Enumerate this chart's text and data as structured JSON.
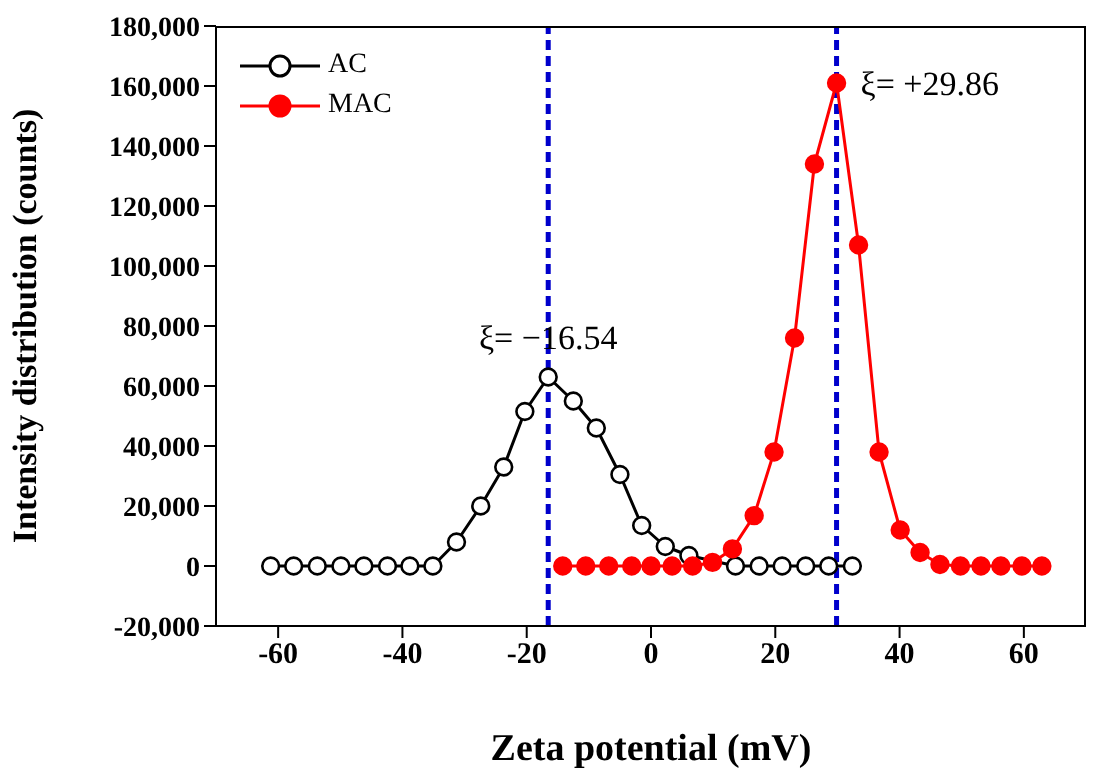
{
  "chart_data": {
    "type": "line",
    "xlabel": "Zeta potential (mV)",
    "ylabel": "Intensity distribution (counts)",
    "xlim": [
      -70,
      70
    ],
    "xticks": [
      -60,
      -40,
      -20,
      0,
      20,
      40,
      60
    ],
    "ylim": [
      -20000,
      180000
    ],
    "yticks": [
      {
        "value": -20000,
        "label": "-20,000"
      },
      0,
      {
        "value": 20000,
        "label": "20,000"
      },
      {
        "value": 40000,
        "label": "40,000"
      },
      {
        "value": 60000,
        "label": "60,000"
      },
      {
        "value": 80000,
        "label": "80,000"
      },
      {
        "value": 100000,
        "label": "100,000"
      },
      {
        "value": 120000,
        "label": "120,000"
      },
      {
        "value": 140000,
        "label": "140,000"
      },
      {
        "value": 160000,
        "label": "160,000"
      },
      {
        "value": 180000,
        "label": "180,000"
      }
    ],
    "legend": "top left",
    "marker": "circle",
    "line_style": "solid",
    "series": [
      {
        "name": "AC",
        "color": "#000000",
        "x": [
          -61.2,
          -57.5,
          -53.7,
          -49.9,
          -46.2,
          -42.4,
          -38.8,
          -35.1,
          -31.3,
          -27.4,
          -23.7,
          -20.3,
          -16.54,
          -12.5,
          -8.8,
          -5.0,
          -1.5,
          2.3,
          6.1,
          9.9,
          13.6,
          17.4,
          21.1,
          24.9,
          28.6,
          32.4
        ],
        "values": [
          0,
          0,
          0,
          0,
          0,
          0,
          0,
          0,
          8000,
          20000,
          33000,
          51500,
          63000,
          55000,
          46000,
          30500,
          13500,
          6500,
          3500,
          null,
          0,
          0,
          0,
          0,
          0,
          0
        ]
      },
      {
        "name": "MAC",
        "color": "#ff0000",
        "x": [
          -14.2,
          -10.5,
          -6.8,
          -3.1,
          0,
          3.4,
          6.7,
          9.9,
          13.1,
          16.6,
          19.8,
          23.1,
          26.3,
          29.86,
          33.4,
          36.7,
          40.1,
          43.3,
          46.5,
          49.8,
          53.1,
          56.3,
          59.7,
          62.9
        ],
        "values": [
          0,
          0,
          0,
          0,
          0,
          0,
          0,
          1200,
          5700,
          16800,
          38000,
          76000,
          134000,
          161000,
          107000,
          38000,
          12000,
          4500,
          500,
          0,
          0,
          0,
          0,
          0
        ]
      }
    ],
    "ref_lines": [
      {
        "axis": "x",
        "value": -16.54,
        "color": "#0000cc",
        "line_style": "dashed"
      },
      {
        "axis": "x",
        "value": 29.86,
        "color": "#0000cc",
        "line_style": "dashed"
      }
    ],
    "annotations": [
      {
        "text": "ξ= −16.54",
        "x": -16.54,
        "y": 63000
      },
      {
        "text": "ξ= +29.86",
        "x": 29.86,
        "y": 161000
      }
    ]
  }
}
